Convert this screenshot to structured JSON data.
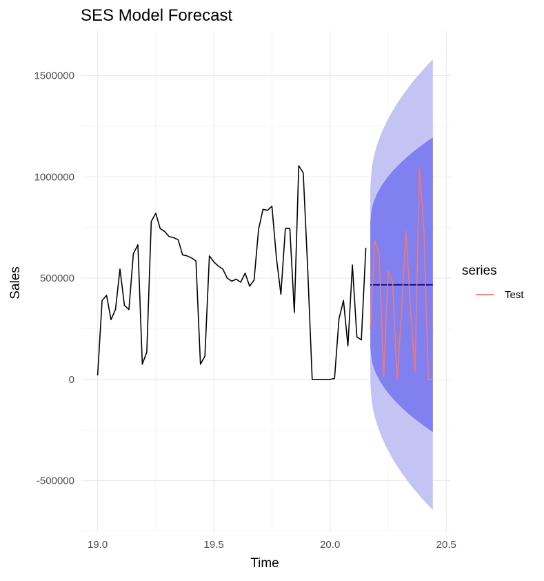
{
  "chart_data": {
    "type": "line",
    "title": "SES Model Forecast",
    "xlabel": "Time",
    "ylabel": "Sales",
    "xlim": [
      18.93,
      20.52
    ],
    "ylim": [
      -750000,
      1720000
    ],
    "x_ticks": [
      19.0,
      19.5,
      20.0,
      20.5
    ],
    "x_tick_labels": [
      "19.0",
      "19.5",
      "20.0",
      "20.5"
    ],
    "y_ticks": [
      -500000,
      0,
      500000,
      1000000,
      1500000
    ],
    "y_tick_labels": [
      "-500000",
      "0",
      "500000",
      "1000000",
      "1500000"
    ],
    "grid": true,
    "legend": {
      "title": "series",
      "position": "right",
      "entries": [
        {
          "label": "Test",
          "color": "#f8766d"
        }
      ]
    },
    "colors": {
      "history": "#000000",
      "forecast_mean": "#00008b",
      "band80": "#8080f0",
      "band95": "#c4c4f4",
      "grid": "#ebebeb",
      "axis_text": "#4d4d4d"
    },
    "history": {
      "x": [
        19.0,
        19.0192,
        19.0385,
        19.0577,
        19.0769,
        19.0962,
        19.1154,
        19.1346,
        19.1538,
        19.1731,
        19.1923,
        19.2115,
        19.2308,
        19.25,
        19.2692,
        19.2885,
        19.3077,
        19.3269,
        19.3462,
        19.3654,
        19.3846,
        19.4038,
        19.4231,
        19.4423,
        19.4615,
        19.4808,
        19.5,
        19.5192,
        19.5385,
        19.5577,
        19.5769,
        19.5962,
        19.6154,
        19.6346,
        19.6538,
        19.6731,
        19.6923,
        19.7115,
        19.7308,
        19.75,
        19.7692,
        19.7885,
        19.8077,
        19.8269,
        19.8462,
        19.8654,
        19.8846,
        19.9038,
        19.9231,
        19.9423,
        19.9615,
        19.9808,
        20.0,
        20.0192,
        20.0385,
        20.0577,
        20.0769,
        20.0962,
        20.1154,
        20.1346,
        20.1538
      ],
      "y": [
        20000,
        390000,
        415000,
        295000,
        345000,
        545000,
        365000,
        345000,
        620000,
        665000,
        75000,
        135000,
        780000,
        820000,
        745000,
        730000,
        705000,
        700000,
        690000,
        615000,
        610000,
        600000,
        585000,
        75000,
        115000,
        610000,
        580000,
        560000,
        545000,
        500000,
        485000,
        495000,
        480000,
        525000,
        460000,
        490000,
        740000,
        840000,
        835000,
        855000,
        600000,
        420000,
        745000,
        745000,
        330000,
        1055000,
        1020000,
        545000,
        0,
        0,
        0,
        0,
        0,
        5000,
        300000,
        390000,
        165000,
        565000,
        210000,
        195000,
        650000
      ]
    },
    "forecast": {
      "x": [
        20.1731,
        20.4423
      ],
      "mean": [
        467000,
        467000
      ],
      "lo80": [
        155000,
        -260000
      ],
      "hi80": [
        780000,
        1195000
      ],
      "lo95": [
        -15000,
        -645000
      ],
      "hi95": [
        950000,
        1580000
      ]
    },
    "series": [
      {
        "name": "Test",
        "x": [
          20.1731,
          20.1923,
          20.2115,
          20.2308,
          20.25,
          20.2692,
          20.2885,
          20.3077,
          20.3269,
          20.3462,
          20.3654,
          20.3846,
          20.4038,
          20.4231,
          20.4423
        ],
        "values": [
          250000,
          685000,
          620000,
          10000,
          535000,
          480000,
          0,
          340000,
          730000,
          345000,
          35000,
          1045000,
          740000,
          0,
          0
        ]
      }
    ]
  }
}
